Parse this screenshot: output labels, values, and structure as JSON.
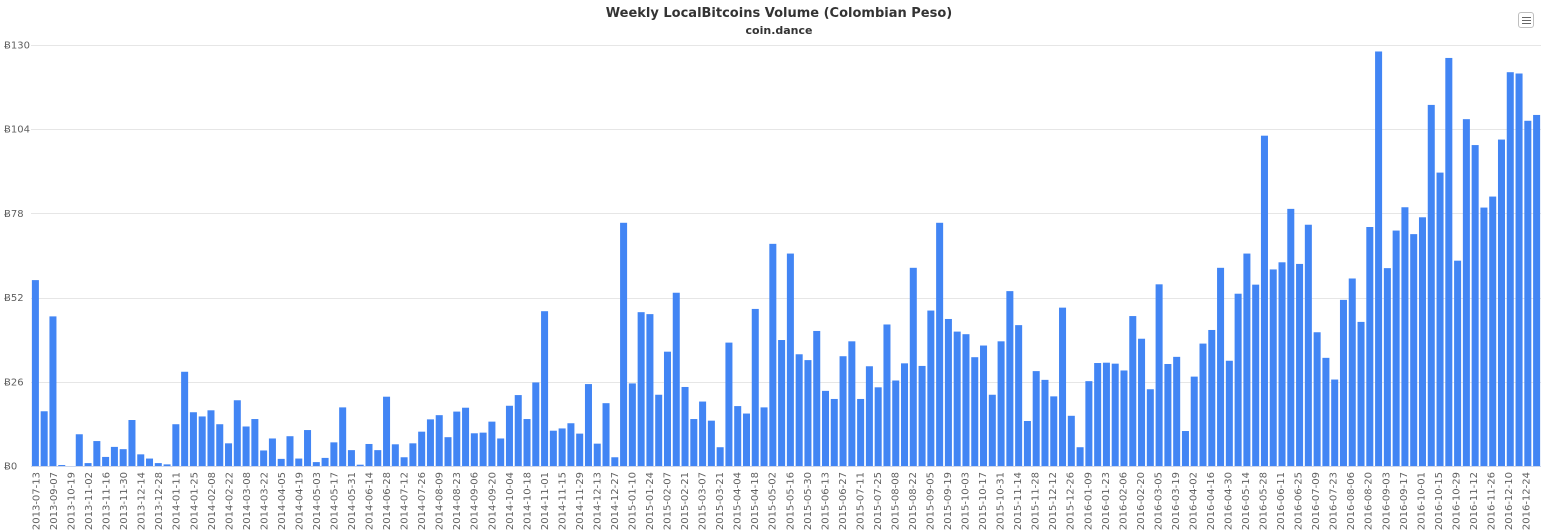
{
  "chart_data": {
    "type": "bar",
    "title": "Weekly LocalBitcoins Volume (Colombian Peso)",
    "subtitle": "coin.dance",
    "y_tick_labels": [
      "Ƀ0",
      "Ƀ26",
      "Ƀ52",
      "Ƀ78",
      "Ƀ104",
      "Ƀ130"
    ],
    "y_ticks": [
      0,
      26,
      52,
      78,
      104,
      130
    ],
    "ylim": [
      0,
      130
    ],
    "grid": true,
    "legend": "none",
    "color": "#4285f4",
    "menu_icon": "hamburger-menu-icon",
    "x_tick_labels": [
      "2013-07-13",
      "2013-09-07",
      "2013-10-19",
      "2013-11-02",
      "2013-11-16",
      "2013-11-30",
      "2013-12-14",
      "2013-12-28",
      "2014-01-11",
      "2014-01-25",
      "2014-02-08",
      "2014-02-22",
      "2014-03-08",
      "2014-03-22",
      "2014-04-05",
      "2014-04-19",
      "2014-05-03",
      "2014-05-17",
      "2014-05-31",
      "2014-06-14",
      "2014-06-28",
      "2014-07-12",
      "2014-07-26",
      "2014-08-09",
      "2014-08-23",
      "2014-09-06",
      "2014-09-20",
      "2014-10-04",
      "2014-10-18",
      "2014-11-01",
      "2014-11-15",
      "2014-11-29",
      "2014-12-13",
      "2014-12-27",
      "2015-01-10",
      "2015-01-24",
      "2015-02-07",
      "2015-02-21",
      "2015-03-07",
      "2015-03-21",
      "2015-04-04",
      "2015-04-18",
      "2015-05-02",
      "2015-05-16",
      "2015-05-30",
      "2015-06-13",
      "2015-06-27",
      "2015-07-11",
      "2015-07-25",
      "2015-08-08",
      "2015-08-22",
      "2015-09-05",
      "2015-09-19",
      "2015-10-03",
      "2015-10-17",
      "2015-10-31",
      "2015-11-14",
      "2015-11-28",
      "2015-12-12",
      "2015-12-26",
      "2016-01-09",
      "2016-01-23",
      "2016-02-06",
      "2016-02-20",
      "2016-03-05",
      "2016-03-19",
      "2016-04-02",
      "2016-04-16",
      "2016-04-30",
      "2016-05-14",
      "2016-05-28",
      "2016-06-11",
      "2016-06-25",
      "2016-07-09",
      "2016-07-23",
      "2016-08-06",
      "2016-08-20",
      "2016-09-03",
      "2016-09-17",
      "2016-10-01",
      "2016-10-15",
      "2016-10-29",
      "2016-11-12",
      "2016-11-26",
      "2016-12-10",
      "2016-12-24"
    ],
    "values": [
      57.4,
      16.9,
      46.2,
      0.3,
      0,
      9.8,
      0.9,
      7.7,
      2.8,
      5.9,
      5.2,
      14.2,
      3.6,
      2.3,
      0.9,
      0.5,
      12.9,
      29.1,
      16.6,
      15.3,
      17.2,
      12.9,
      7,
      20.3,
      12.2,
      14.5,
      4.8,
      8.5,
      2.2,
      9.2,
      2.3,
      11.1,
      1.2,
      2.5,
      7.3,
      18.1,
      4.9,
      0.4,
      6.8,
      4.9,
      21.4,
      6.7,
      2.7,
      7,
      10.6,
      14.4,
      15.7,
      8.9,
      16.8,
      18,
      10.1,
      10.3,
      13.7,
      8.5,
      18.6,
      21.9,
      14.5,
      25.8,
      47.8,
      10.9,
      11.6,
      13.2,
      10,
      25.3,
      6.9,
      19.4,
      2.7,
      75.1,
      25.5,
      47.5,
      46.9,
      22,
      35.3,
      53.5,
      24.4,
      14.5,
      19.9,
      14,
      5.8,
      38.1,
      18.5,
      16.2,
      48.5,
      18.1,
      68.6,
      38.9,
      65.6,
      34.5,
      32.7,
      41.7,
      23.2,
      20.7,
      33.9,
      38.5,
      20.7,
      30.8,
      24.3,
      43.7,
      26.4,
      31.7,
      61.2,
      30.9,
      48,
      75.1,
      45.4,
      41.5,
      40.7,
      33.6,
      37.2,
      22,
      38.5,
      54,
      43.5,
      13.9,
      29.3,
      26.6,
      21.5,
      48.9,
      15.5,
      5.8,
      26.2,
      31.8,
      31.9,
      31.6,
      29.5,
      46.3,
      39.3,
      23.7,
      56.1,
      31.5,
      33.7,
      10.8,
      27.6,
      37.8,
      42,
      61.2,
      32.5,
      53.2,
      65.6,
      56,
      102,
      60.7,
      62.9,
      79.4,
      62.4,
      74.5,
      41.3,
      33.4,
      26.7,
      51.3,
      57.9,
      44.5,
      73.8,
      128,
      61.1,
      72.7,
      79.9,
      71.6,
      76.8,
      111.5,
      90.6,
      126,
      63.4,
      107.1,
      99.1,
      79.8,
      83.2,
      100.8,
      121.6,
      121.2,
      106.6,
      108.4
    ]
  }
}
